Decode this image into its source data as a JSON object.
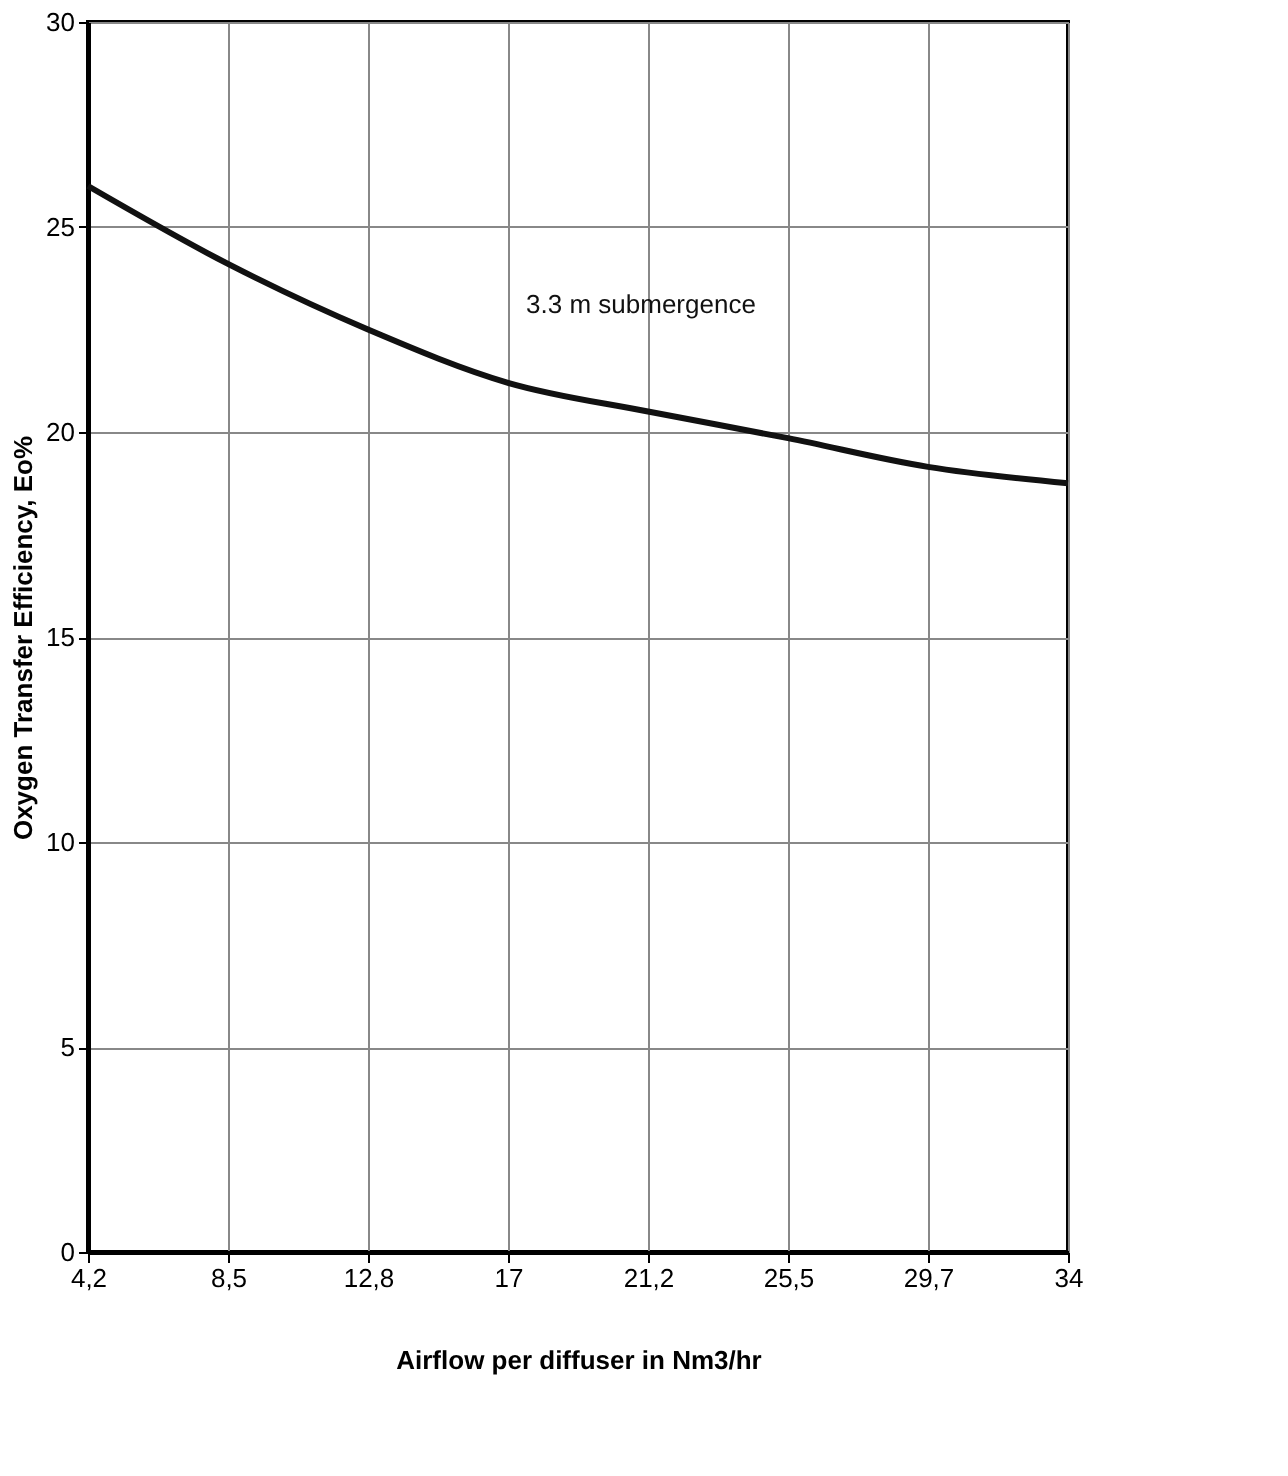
{
  "chart_data": {
    "type": "line",
    "xlabel": "Airflow per diffuser in Nm3/hr",
    "ylabel": "Oxygen Transfer Efficiency, Eo%",
    "categories": [
      "4,2",
      "8,5",
      "12,8",
      "17",
      "21,2",
      "25,5",
      "29,7",
      "34"
    ],
    "series": [
      {
        "name": "3.3 m submergence",
        "color": "#111111",
        "values": [
          26.0,
          24.1,
          22.5,
          21.2,
          20.5,
          19.85,
          19.15,
          18.75
        ]
      }
    ],
    "ylim": [
      0,
      30
    ],
    "yticks": [
      0,
      5,
      10,
      15,
      20,
      25,
      30
    ],
    "grid": true,
    "legend": false,
    "marker": "none",
    "line_style": "solid"
  }
}
